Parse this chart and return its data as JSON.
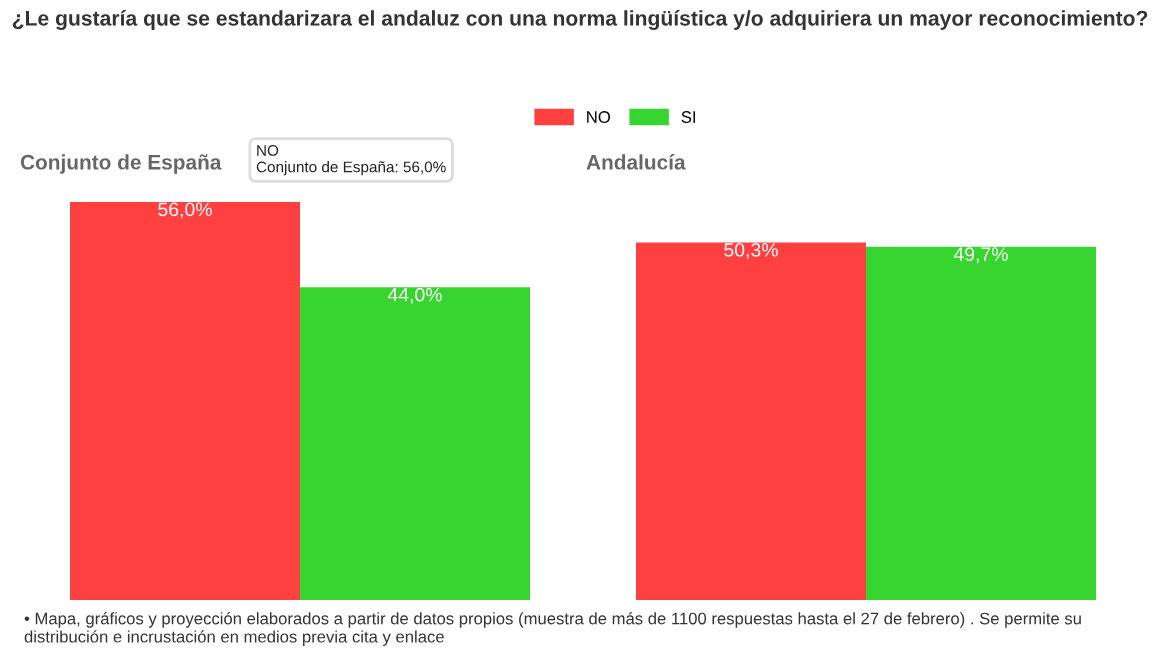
{
  "chart_data": [
    {
      "type": "other",
      "title": "¿Le gustaría que se estandarizara el andaluz con una norma lingüística y/o adquiriera un mayor reconocimiento?"
    },
    {
      "type": "bar",
      "title": "Conjunto de España",
      "categories": [
        null
      ],
      "series": [
        {
          "name": "NO",
          "color": "#ff4040",
          "values": [
            56.0
          ],
          "value_labels": [
            "56,0%"
          ]
        },
        {
          "name": "SI",
          "color": "#38d430",
          "values": [
            44.0
          ],
          "value_labels": [
            "44,0%"
          ]
        }
      ],
      "legend": "top right",
      "tick_labels": false,
      "annotations": [
        "NO",
        "Conjunto de España: 56,0%"
      ]
    },
    {
      "type": "bar",
      "title": "Andalucía",
      "categories": [
        null
      ],
      "series": [
        {
          "color": "#ff4040",
          "values": [
            50.3
          ],
          "value_labels": [
            "50,3%"
          ]
        },
        {
          "color": "#38d430",
          "values": [
            49.7
          ],
          "value_labels": [
            "49,7%"
          ]
        }
      ],
      "tick_labels": false,
      "annotations": [
        "• Mapa, gráficos y proyección elaborados a partir de datos propios (muestra de más de 1100 respuestas hasta el 27 de febrero) . Se permite su distribución e incrustación en medios previa cita y enlace"
      ]
    }
  ]
}
